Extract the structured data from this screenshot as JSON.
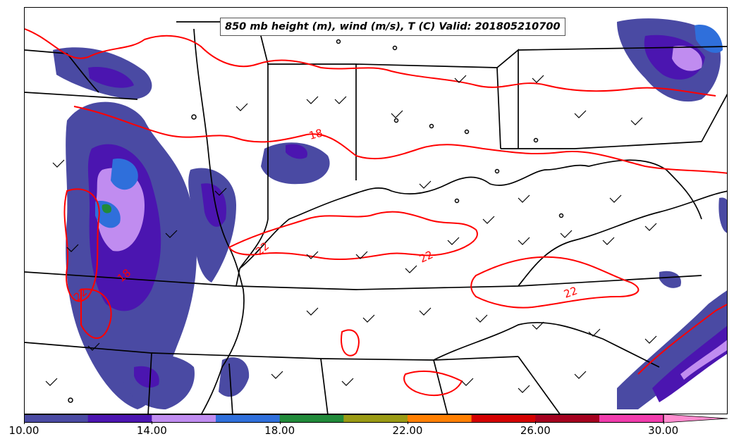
{
  "title": "850 mb height (m), wind (m/s), T (C) Valid: 201805210700",
  "colorbar": {
    "colors": [
      "#4a4aa3",
      "#4b15b0",
      "#c08cf0",
      "#2f6fdb",
      "#218a3a",
      "#9a9a14",
      "#ff7f00",
      "#d40000",
      "#a5001f",
      "#f03cac",
      "#ff8ccf"
    ],
    "tick_labels": [
      "10.00",
      "14.00",
      "18.00",
      "22.00",
      "26.00",
      "30.00"
    ],
    "tick_values": [
      10,
      14,
      18,
      22,
      26,
      30
    ],
    "range": [
      10,
      31
    ]
  },
  "contour_labels": [
    "18",
    "22",
    "22",
    "22",
    "18",
    "22"
  ],
  "colors": {
    "temperature_contour": "#ff0000",
    "borders": "#000000"
  }
}
